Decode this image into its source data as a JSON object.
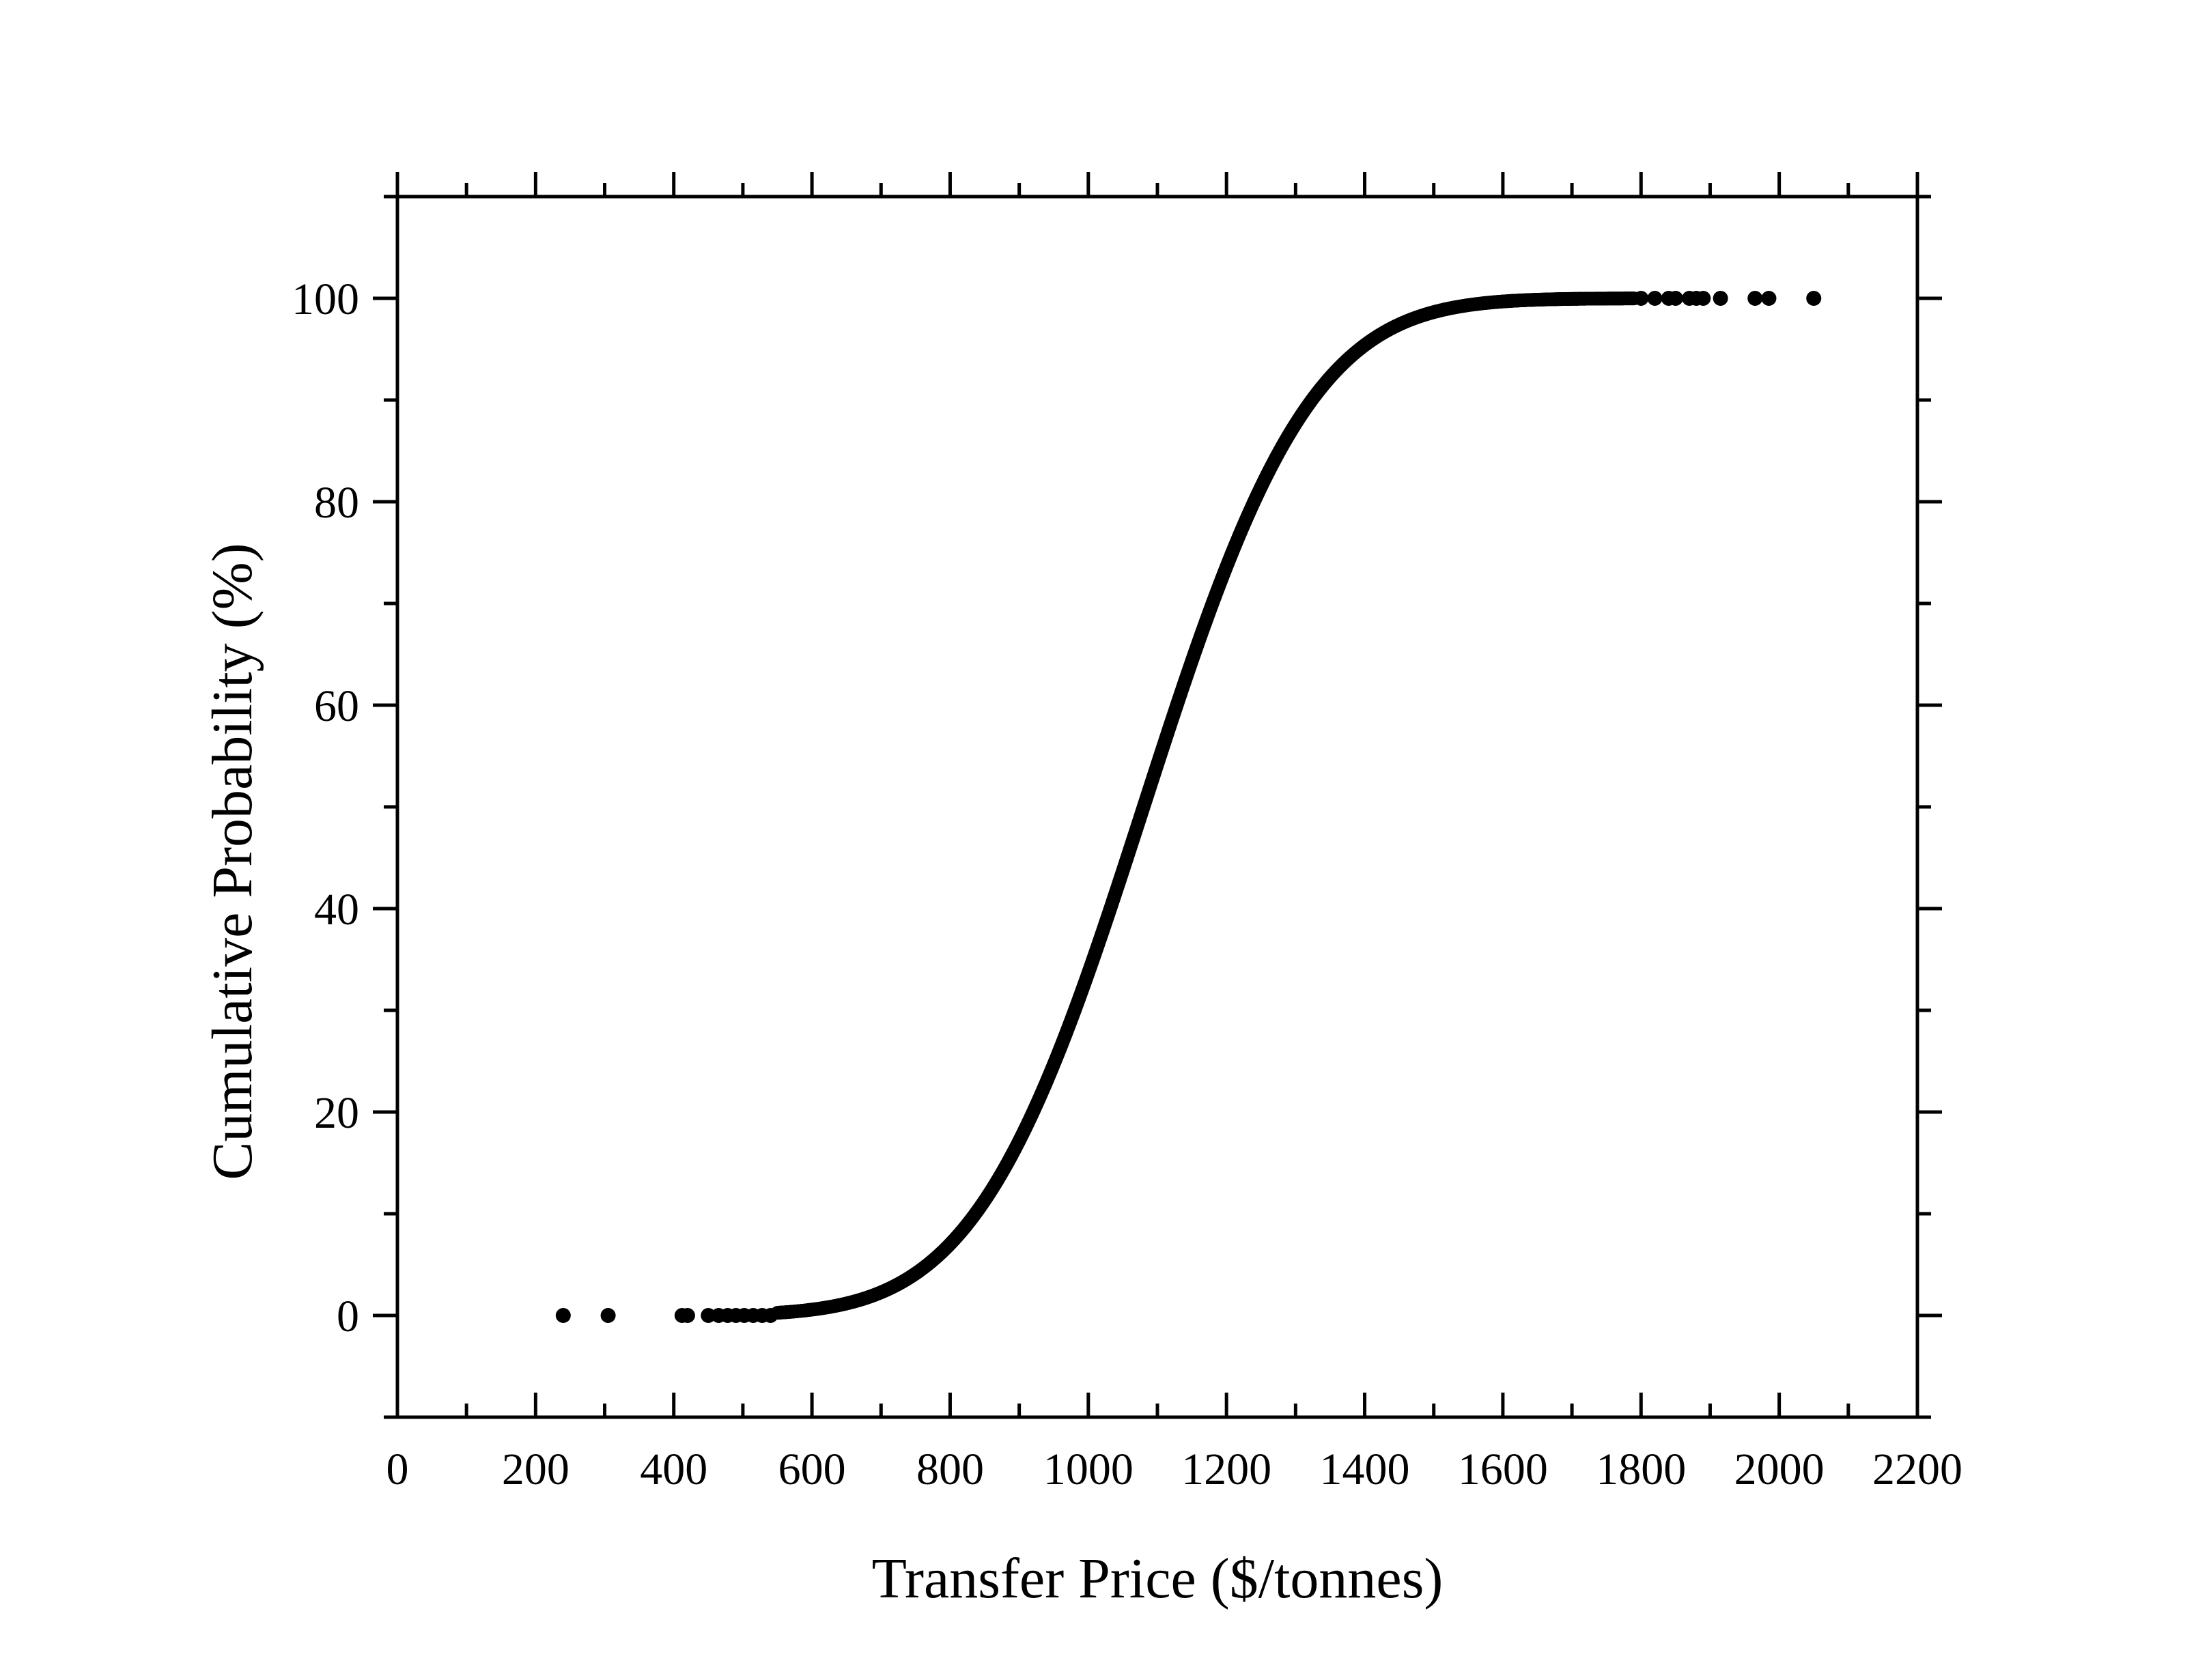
{
  "chart_data": {
    "type": "scatter",
    "title": "",
    "xlabel": "Transfer Price ($/tonnes)",
    "ylabel": "Cumulative Probability (%)",
    "xlim": [
      0,
      2200
    ],
    "ylim": [
      -10,
      110
    ],
    "x_ticks": [
      0,
      200,
      400,
      600,
      800,
      1000,
      1200,
      1400,
      1600,
      1800,
      2000,
      2200
    ],
    "x_tick_labels": [
      "0",
      "200",
      "400",
      "600",
      "800",
      "1000",
      "1200",
      "1400",
      "1600",
      "1800",
      "2000",
      "2200"
    ],
    "y_ticks": [
      0,
      20,
      40,
      60,
      80,
      100
    ],
    "y_tick_labels": [
      "0",
      "20",
      "40",
      "60",
      "80",
      "100"
    ],
    "grid": false,
    "legend": "none",
    "marker_color": "#000000",
    "distribution": {
      "shape": "normal CDF",
      "mean": 1080,
      "std": 190
    },
    "x_range": [
      240,
      2050
    ],
    "outlier_points": [
      {
        "x": 240,
        "y": 0
      },
      {
        "x": 305,
        "y": 0
      },
      {
        "x": 412,
        "y": 0
      },
      {
        "x": 420,
        "y": 0
      },
      {
        "x": 450,
        "y": 0
      },
      {
        "x": 465,
        "y": 0
      },
      {
        "x": 478,
        "y": 0
      },
      {
        "x": 490,
        "y": 0
      },
      {
        "x": 502,
        "y": 0
      },
      {
        "x": 515,
        "y": 0
      },
      {
        "x": 528,
        "y": 0
      },
      {
        "x": 540,
        "y": 0
      },
      {
        "x": 1800,
        "y": 100
      },
      {
        "x": 1820,
        "y": 100
      },
      {
        "x": 1840,
        "y": 100
      },
      {
        "x": 1850,
        "y": 100
      },
      {
        "x": 1870,
        "y": 100
      },
      {
        "x": 1880,
        "y": 100
      },
      {
        "x": 1890,
        "y": 100
      },
      {
        "x": 1915,
        "y": 100
      },
      {
        "x": 1965,
        "y": 100
      },
      {
        "x": 1985,
        "y": 100
      },
      {
        "x": 2050,
        "y": 100
      }
    ]
  }
}
